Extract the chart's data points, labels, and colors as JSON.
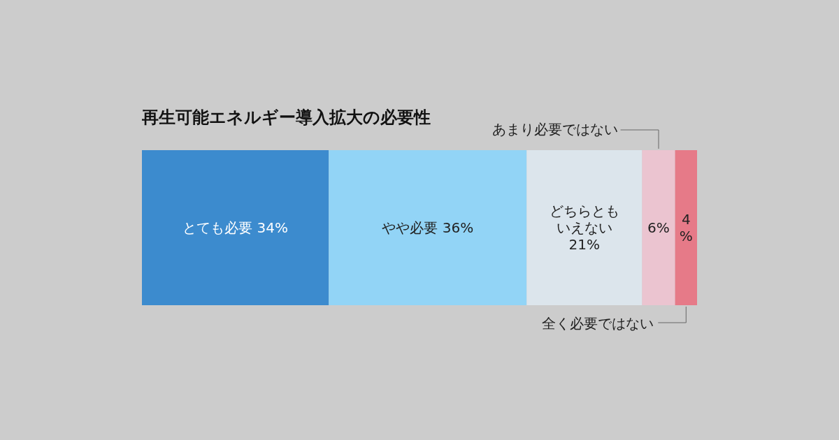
{
  "chart_data": {
    "type": "bar",
    "orientation": "horizontal",
    "stacked": true,
    "title": "再生可能エネルギー導入拡大の必要性",
    "categories": [
      null
    ],
    "series": [
      {
        "name": "とても必要",
        "color": "#3c8bce",
        "values": [
          34
        ],
        "value_labels": [
          "34%"
        ]
      },
      {
        "name": "やや必要",
        "color": "#92d4f6",
        "values": [
          36
        ],
        "value_labels": [
          "36%"
        ]
      },
      {
        "name": "どちらともいえない",
        "color": "#dce5ec",
        "values": [
          21
        ],
        "value_labels": [
          "21%"
        ]
      },
      {
        "name": "あまり必要ではない",
        "color": "#ebc4d0",
        "values": [
          6
        ],
        "value_labels": [
          "6%"
        ]
      },
      {
        "name": "全く必要ではない",
        "color": "#e67a88",
        "values": [
          4
        ],
        "value_labels": [
          "4%"
        ]
      }
    ]
  }
}
